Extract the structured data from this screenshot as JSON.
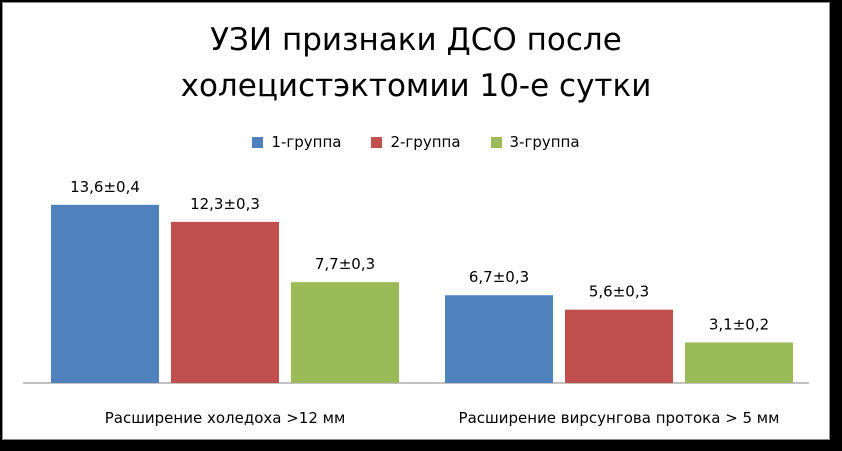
{
  "chart_data": {
    "type": "bar",
    "title_lines": [
      "УЗИ признаки ДСО после",
      "холецистэктомии 10-е сутки"
    ],
    "categories": [
      "Расширение холедоха >12 мм",
      "Расширение вирсунгова протока > 5 мм"
    ],
    "series": [
      {
        "name": "1-группа",
        "color": "#4f81bd",
        "values": [
          13.6,
          6.7
        ],
        "labels": [
          "13,6±0,4",
          "6,7±0,3"
        ]
      },
      {
        "name": "2-группа",
        "color": "#c0504d",
        "values": [
          12.3,
          5.6
        ],
        "labels": [
          "12,3±0,3",
          "5,6±0,3"
        ]
      },
      {
        "name": "3-группа",
        "color": "#9bbb59",
        "values": [
          7.7,
          3.1
        ],
        "labels": [
          "7,7±0,3",
          "3,1±0,2"
        ]
      }
    ],
    "ylim": [
      0,
      14
    ],
    "grid": false,
    "legend_position": "top"
  }
}
